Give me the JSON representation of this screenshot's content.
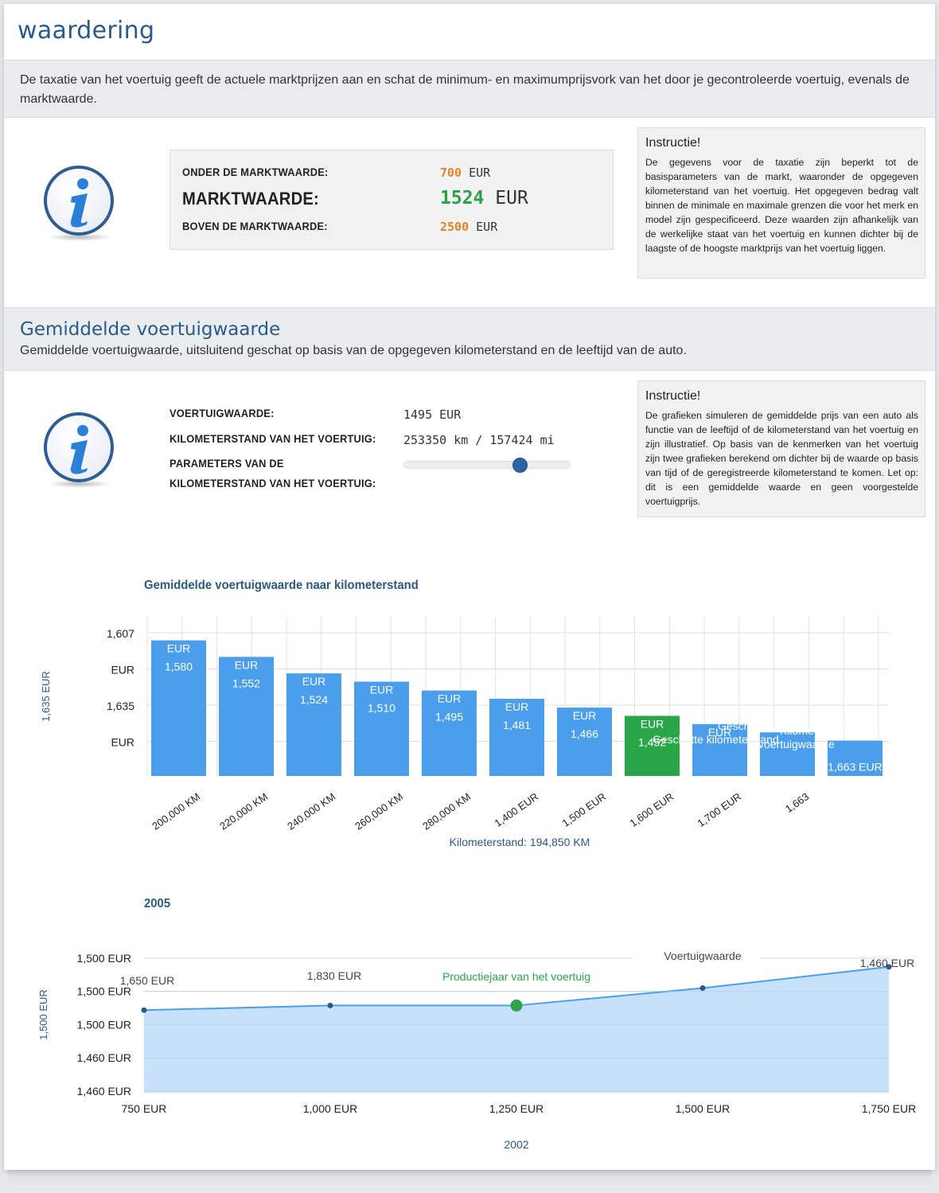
{
  "page": {
    "title": "waardering"
  },
  "intro": {
    "text": "De taxatie van het voertuig geeft de actuele marktprijzen aan en schat de minimum- en maximumprijsvork van het door je gecontroleerde voertuig, evenals de marktwaarde."
  },
  "valuation": {
    "below_label": "ONDER DE MARKTWAARDE:",
    "below_value": "700",
    "market_label": "MARKTWAARDE:",
    "market_value": "1524",
    "above_label": "BOVEN DE MARKTWAARDE:",
    "above_value": "2500",
    "currency": "EUR"
  },
  "instruction1": {
    "title": "Instructie!",
    "text": "De gegevens voor de taxatie zijn beperkt tot de basisparameters van de markt, waaronder de opgegeven kilometerstand van het voertuig. Het opgegeven bedrag valt binnen de minimale en maximale grenzen die voor het merk en model zijn gespecificeerd. Deze waarden zijn afhankelijk van de werkelijke staat van het voertuig en kunnen dichter bij de laagste of de hoogste marktprijs van het voertuig liggen."
  },
  "section2": {
    "title": "Gemiddelde voertuigwaarde",
    "subtitle": "Gemiddelde voertuigwaarde, uitsluitend geschat op basis van de opgegeven kilometerstand en de leeftijd van de auto."
  },
  "vehicle": {
    "value_label": "VOERTUIGWAARDE:",
    "value": "1495 EUR",
    "mileage_label": "KILOMETERSTAND VAN HET VOERTUIG:",
    "mileage": "253350 km / 157424 mi",
    "params_label_1": "PARAMETERS VAN DE",
    "params_label_2": "KILOMETERSTAND VAN HET VOERTUIG:",
    "slider_level": 0.7
  },
  "instruction2": {
    "title": "Instructie!",
    "text": "De grafieken simuleren de gemiddelde prijs van een auto als functie van de leeftijd of de kilometerstand van het voertuig en zijn illustratief. Op basis van de kenmerken van het voertuig zijn twee grafieken berekend om dichter bij de waarde op basis van tijd of de geregistreerde kilometerstand te komen. Let op: dit is een gemiddelde waarde en geen voorgestelde voertuigprijs."
  },
  "colors": {
    "bar": "#4a9eec",
    "bar_highlight": "#2aa548",
    "accent": "#2a5a87",
    "orange": "#e0852a",
    "green": "#2ea04a"
  },
  "chart_data": [
    {
      "type": "bar",
      "title": "Gemiddelde voertuigwaarde naar kilometerstand",
      "ylabel": "1,635 EUR",
      "xlabel": "Kilometerstand: 194,850 KM",
      "ytick_labels": [
        "1,607",
        "EUR",
        "1,635",
        "EUR"
      ],
      "categories": [
        "200,000 KM",
        "220,000 KM",
        "240,000 KM",
        "260,000 KM",
        "280,000 KM",
        "1,400 EUR",
        "1,500 EUR",
        "1,600 EUR",
        "1,700 EUR",
        "1,663",
        ""
      ],
      "values": [
        1580,
        1552,
        1524,
        1510,
        1495,
        1481,
        1466,
        1452,
        1438,
        1424,
        1410
      ],
      "bar_labels": [
        [
          "EUR",
          "1,580"
        ],
        [
          "EUR",
          "1,552"
        ],
        [
          "EUR",
          "1,524"
        ],
        [
          "EUR",
          "1,510"
        ],
        [
          "EUR",
          "1,495"
        ],
        [
          "EUR",
          "1,481"
        ],
        [
          "EUR",
          "1,466"
        ],
        [
          "EUR",
          "1,452"
        ],
        [
          "EUR",
          ""
        ],
        [
          "",
          ""
        ],
        [
          "",
          "1,663 EUR"
        ]
      ],
      "highlight_index": 7,
      "ylim": [
        1350,
        1620
      ],
      "annotations": [
        "Geschatte kilometerstand",
        "Geschatte voertuigwaarde",
        "voertuigwaarde",
        "Kilometerstand: 185"
      ]
    },
    {
      "type": "area",
      "title": "2005",
      "ylabel": "1,500 EUR",
      "xlabel": "2002",
      "ytick_labels": [
        "1,500 EUR",
        "1,500 EUR",
        "1,500 EUR",
        "1,460 EUR",
        "1,460 EUR"
      ],
      "xtick_labels": [
        "750 EUR",
        "1,000 EUR",
        "1,250 EUR",
        "1,500 EUR",
        "1,750 EUR"
      ],
      "x": [
        750,
        1000,
        1250,
        1500,
        1750
      ],
      "y": [
        1484,
        1500,
        1500,
        1560,
        1633
      ],
      "point_labels": [
        "1,650 EUR",
        "1,830 EUR",
        "Productiejaar van het voertuig",
        "Voertuigwaarde",
        "1,460 EUR"
      ],
      "highlight_index": 2,
      "ylim": [
        1200,
        1660
      ]
    }
  ]
}
